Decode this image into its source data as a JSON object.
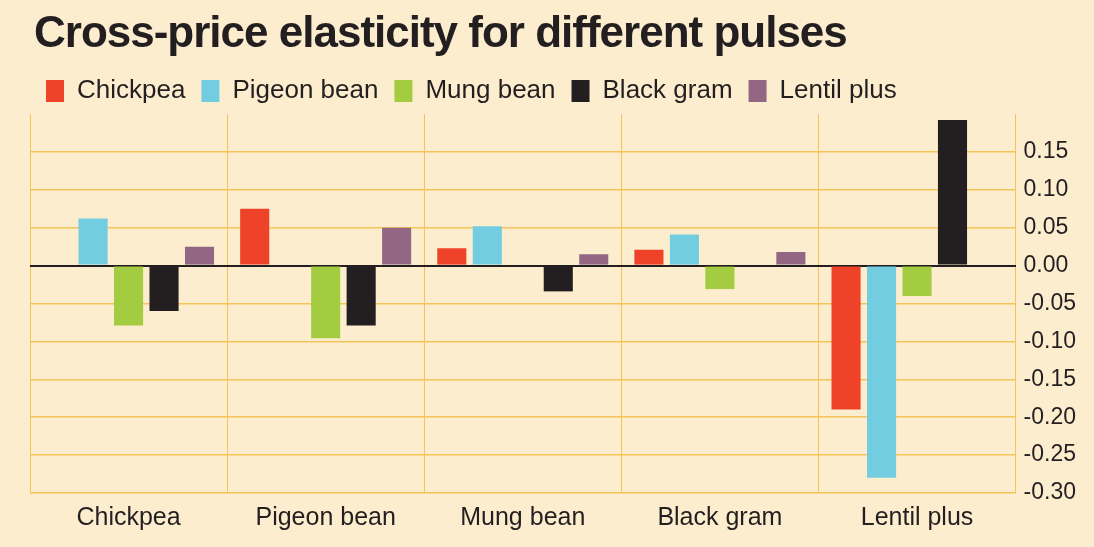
{
  "chart_data": {
    "type": "bar",
    "title": "Cross-price elasticity for different pulses",
    "categories": [
      "Chickpea",
      "Pigeon bean",
      "Mung bean",
      "Black gram",
      "Lentil plus"
    ],
    "series": [
      {
        "name": "Chickpea",
        "color": "#ee4229",
        "values": [
          null,
          0.075,
          0.023,
          0.021,
          -0.19
        ]
      },
      {
        "name": "Pigeon bean",
        "color": "#72cde0",
        "values": [
          0.062,
          null,
          0.052,
          0.041,
          -0.28
        ]
      },
      {
        "name": "Mung bean",
        "color": "#a3cc41",
        "values": [
          -0.079,
          -0.096,
          null,
          -0.031,
          -0.04
        ]
      },
      {
        "name": "Black gram",
        "color": "#231f20",
        "values": [
          -0.06,
          -0.079,
          -0.034,
          null,
          0.192
        ]
      },
      {
        "name": "Lentil plus",
        "color": "#936784",
        "values": [
          0.025,
          0.05,
          0.015,
          0.018,
          null
        ]
      }
    ],
    "ylim": [
      -0.3,
      0.2
    ],
    "yticks": [
      {
        "value": 0.15,
        "label": "0.15"
      },
      {
        "value": 0.1,
        "label": "0.10"
      },
      {
        "value": 0.05,
        "label": "0.05"
      },
      {
        "value": 0,
        "label": "0.00"
      },
      {
        "value": -0.05,
        "label": "-0.05"
      },
      {
        "value": -0.1,
        "label": "-0.10"
      },
      {
        "value": -0.15,
        "label": "-0.15"
      },
      {
        "value": -0.2,
        "label": "-0.20"
      },
      {
        "value": -0.25,
        "label": "-0.25"
      },
      {
        "value": -0.3,
        "label": "-0.30"
      }
    ],
    "grid": true,
    "legend": "top left"
  }
}
